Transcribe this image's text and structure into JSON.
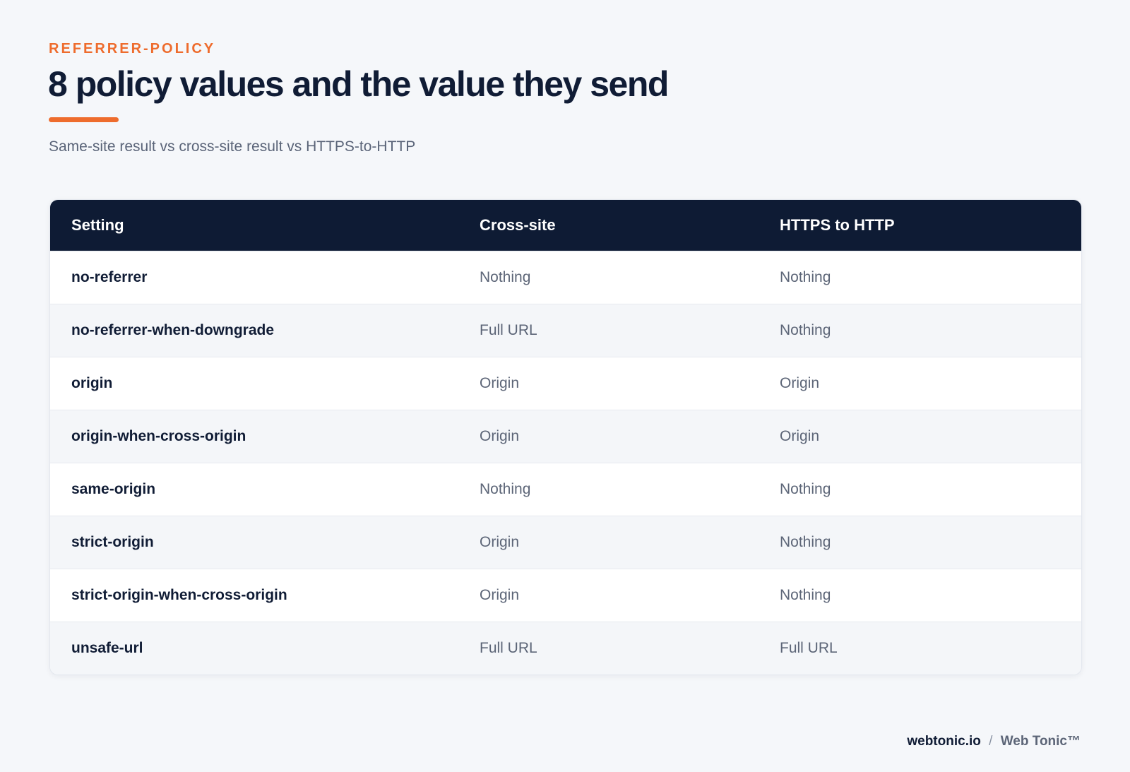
{
  "eyebrow": "REFERRER-POLICY",
  "title": "8 policy values and the value they send",
  "subtitle": "Same-site result vs cross-site result vs HTTPS-to-HTTP",
  "colors": {
    "accent": "#ee6c2d",
    "header_bg": "#0e1b34",
    "page_bg": "#f5f7fa"
  },
  "table": {
    "headers": [
      "Setting",
      "Cross-site",
      "HTTPS to HTTP"
    ],
    "rows": [
      {
        "setting": "no-referrer",
        "cross_site": "Nothing",
        "https_to_http": "Nothing"
      },
      {
        "setting": "no-referrer-when-downgrade",
        "cross_site": "Full URL",
        "https_to_http": "Nothing"
      },
      {
        "setting": "origin",
        "cross_site": "Origin",
        "https_to_http": "Origin"
      },
      {
        "setting": "origin-when-cross-origin",
        "cross_site": "Origin",
        "https_to_http": "Origin"
      },
      {
        "setting": "same-origin",
        "cross_site": "Nothing",
        "https_to_http": "Nothing"
      },
      {
        "setting": "strict-origin",
        "cross_site": "Origin",
        "https_to_http": "Nothing"
      },
      {
        "setting": "strict-origin-when-cross-origin",
        "cross_site": "Origin",
        "https_to_http": "Nothing"
      },
      {
        "setting": "unsafe-url",
        "cross_site": "Full URL",
        "https_to_http": "Full URL"
      }
    ]
  },
  "footer": {
    "domain": "webtonic.io",
    "separator": "/",
    "brand": "Web Tonic™"
  }
}
